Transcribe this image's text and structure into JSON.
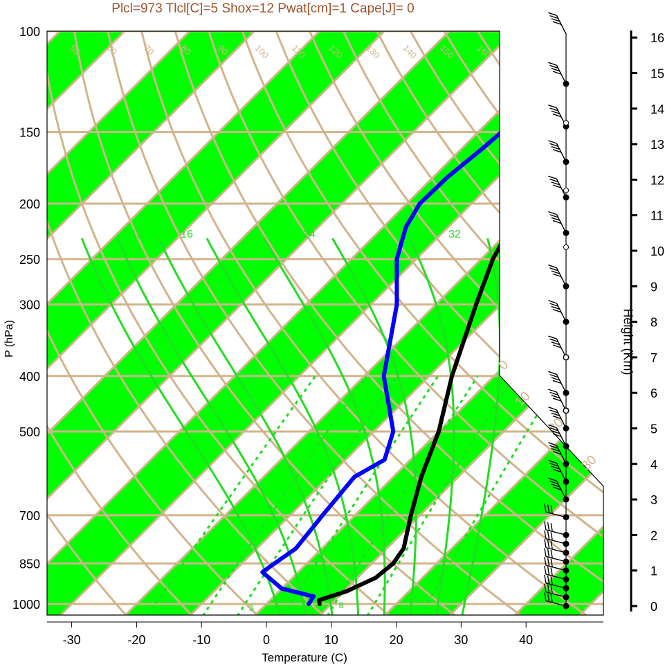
{
  "title": "Plcl=973 Tlcl[C]=5 Shox=12 Pwat[cm]=1 Cape[J]= 0",
  "axes": {
    "ylabel": "P (hPa)",
    "xlabel": "Temperature (C)",
    "height_label": "Height (Km)"
  },
  "chart_data": {
    "type": "line",
    "title": "Plcl=973 Tlcl[C]=5 Shox=12 Pwat[cm]=1 Cape[J]= 0",
    "xlabel": "Temperature (C)",
    "ylabel": "P (hPa)",
    "y_scale": "log",
    "ylim": [
      1050,
      100
    ],
    "xlim": [
      -34,
      52
    ],
    "pressure_ticks": [
      100,
      150,
      200,
      250,
      300,
      400,
      500,
      700,
      850,
      1000
    ],
    "temperature_ticks": [
      -30,
      -20,
      -10,
      0,
      10,
      20,
      30,
      40
    ],
    "height_ticks_km": [
      0,
      1,
      2,
      3,
      4,
      5,
      6,
      7,
      8,
      9,
      10,
      11,
      12,
      13,
      14,
      15,
      16
    ],
    "isotherm_labels_left": [
      40,
      30,
      20,
      10,
      0,
      -10,
      -20,
      -30
    ],
    "isotherm_labels_right": [
      30,
      20,
      10,
      0
    ],
    "dry_adiabat_labels": [
      50,
      60,
      70,
      80,
      90,
      100,
      110,
      120,
      130,
      140,
      150,
      160
    ],
    "moist_adiabat_labels": [
      12,
      16,
      24,
      32
    ],
    "mixing_ratio_labels": [
      3,
      8
    ],
    "colors": {
      "temperature": "#000000",
      "dewpoint": "#0000ff",
      "band": "#00ff00",
      "isopleth": "#d2b48c",
      "moist_adiabat": "#22dd22",
      "title": "#a0522d"
    },
    "series": [
      {
        "name": "Temperature",
        "points": [
          {
            "p": 1000,
            "t": 8.2
          },
          {
            "p": 985,
            "t": 7.5
          },
          {
            "p": 950,
            "t": 10.4
          },
          {
            "p": 900,
            "t": 12.8
          },
          {
            "p": 850,
            "t": 13.3
          },
          {
            "p": 800,
            "t": 12.6
          },
          {
            "p": 700,
            "t": 8.6
          },
          {
            "p": 600,
            "t": 4.3
          },
          {
            "p": 500,
            "t": 0.0
          },
          {
            "p": 400,
            "t": -6.5
          },
          {
            "p": 300,
            "t": -13.8
          },
          {
            "p": 250,
            "t": -18.2
          },
          {
            "p": 220,
            "t": -20.4
          },
          {
            "p": 200,
            "t": -20.9
          },
          {
            "p": 175,
            "t": -19.3
          },
          {
            "p": 150,
            "t": -14.0
          },
          {
            "p": 135,
            "t": -12.4
          },
          {
            "p": 115,
            "t": -8.6
          },
          {
            "p": 100,
            "t": -7.5
          }
        ]
      },
      {
        "name": "Dewpoint",
        "points": [
          {
            "p": 1000,
            "t": 6.5
          },
          {
            "p": 970,
            "t": 6.1
          },
          {
            "p": 940,
            "t": 0.0
          },
          {
            "p": 880,
            "t": -5.5
          },
          {
            "p": 850,
            "t": -5.0
          },
          {
            "p": 800,
            "t": -4.0
          },
          {
            "p": 700,
            "t": -5.0
          },
          {
            "p": 600,
            "t": -6.0
          },
          {
            "p": 560,
            "t": -4.0
          },
          {
            "p": 500,
            "t": -7.0
          },
          {
            "p": 400,
            "t": -17.0
          },
          {
            "p": 300,
            "t": -26.0
          },
          {
            "p": 250,
            "t": -33.0
          },
          {
            "p": 220,
            "t": -36.5
          },
          {
            "p": 200,
            "t": -38.0
          },
          {
            "p": 180,
            "t": -37.8
          },
          {
            "p": 160,
            "t": -36.8
          },
          {
            "p": 140,
            "t": -36.0
          },
          {
            "p": 120,
            "t": -37.5
          },
          {
            "p": 100,
            "t": -32.0
          }
        ]
      }
    ],
    "wind_heights_km": [
      0,
      0.25,
      0.5,
      0.75,
      1,
      1.25,
      1.5,
      1.75,
      2,
      2.5,
      3,
      3.5,
      4,
      4.5,
      5,
      5.5,
      6,
      7,
      8,
      9,
      10.5,
      11.5,
      12.5,
      13.5,
      14.7,
      16.1
    ]
  }
}
